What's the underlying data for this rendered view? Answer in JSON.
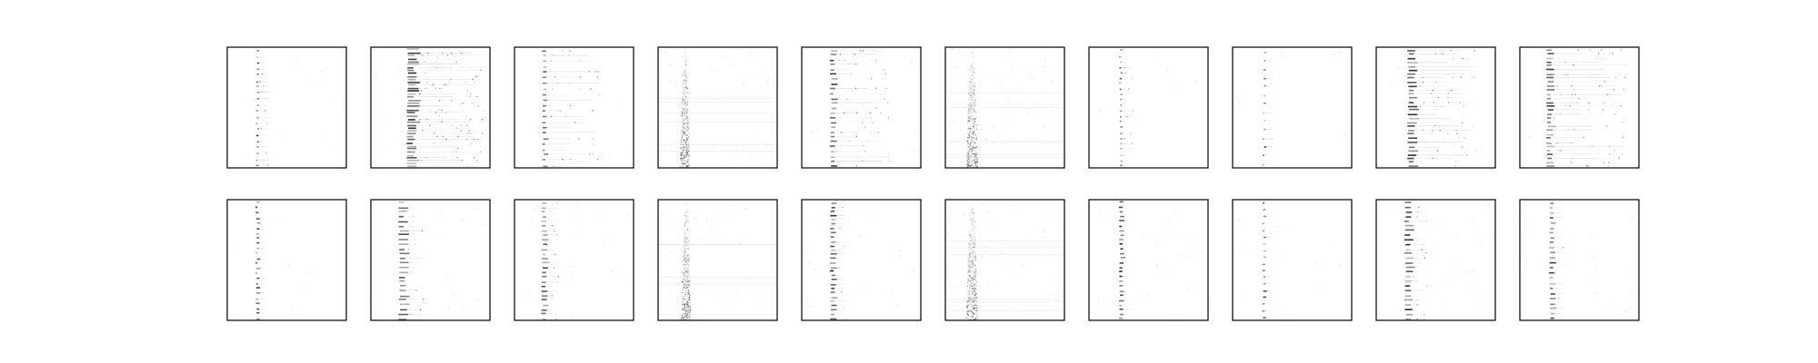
{
  "chart_data": {
    "type": "heatmap",
    "title": "",
    "grid": false,
    "axes_ticks": false,
    "colormap": "gray_r",
    "layout": {
      "rows": 2,
      "cols": 10
    },
    "panels": [
      {
        "row": 0,
        "col": 0,
        "band_x": 0.25,
        "band_width": 0.02,
        "lines": 20,
        "spread": 0.1,
        "intensity": 0.7,
        "noise": 0.02
      },
      {
        "row": 0,
        "col": 1,
        "band_x": 0.35,
        "band_width": 0.1,
        "lines": 40,
        "spread": 0.55,
        "intensity": 0.8,
        "noise": 0.03
      },
      {
        "row": 0,
        "col": 2,
        "band_x": 0.25,
        "band_width": 0.04,
        "lines": 22,
        "spread": 0.45,
        "intensity": 0.6,
        "noise": 0.02
      },
      {
        "row": 0,
        "col": 3,
        "band_x": 0.22,
        "band_width": 0.05,
        "lines": 0,
        "spread": 0.0,
        "intensity": 0.8,
        "noise": 0.08,
        "diffuse": true
      },
      {
        "row": 0,
        "col": 4,
        "band_x": 0.26,
        "band_width": 0.05,
        "lines": 25,
        "spread": 0.45,
        "intensity": 0.7,
        "noise": 0.02
      },
      {
        "row": 0,
        "col": 5,
        "band_x": 0.22,
        "band_width": 0.06,
        "lines": 0,
        "spread": 0.0,
        "intensity": 0.9,
        "noise": 0.1,
        "diffuse": true
      },
      {
        "row": 0,
        "col": 6,
        "band_x": 0.26,
        "band_width": 0.02,
        "lines": 22,
        "spread": 0.1,
        "intensity": 0.6,
        "noise": 0.01
      },
      {
        "row": 0,
        "col": 7,
        "band_x": 0.26,
        "band_width": 0.02,
        "lines": 14,
        "spread": 0.08,
        "intensity": 0.6,
        "noise": 0.01
      },
      {
        "row": 0,
        "col": 8,
        "band_x": 0.3,
        "band_width": 0.08,
        "lines": 30,
        "spread": 0.5,
        "intensity": 0.8,
        "noise": 0.02
      },
      {
        "row": 0,
        "col": 9,
        "band_x": 0.25,
        "band_width": 0.06,
        "lines": 30,
        "spread": 0.6,
        "intensity": 0.7,
        "noise": 0.02
      },
      {
        "row": 1,
        "col": 0,
        "band_x": 0.25,
        "band_width": 0.03,
        "lines": 24,
        "spread": 0.06,
        "intensity": 0.7,
        "noise": 0.02
      },
      {
        "row": 1,
        "col": 1,
        "band_x": 0.27,
        "band_width": 0.08,
        "lines": 26,
        "spread": 0.15,
        "intensity": 0.6,
        "noise": 0.04
      },
      {
        "row": 1,
        "col": 2,
        "band_x": 0.25,
        "band_width": 0.05,
        "lines": 26,
        "spread": 0.1,
        "intensity": 0.7,
        "noise": 0.03
      },
      {
        "row": 1,
        "col": 3,
        "band_x": 0.23,
        "band_width": 0.05,
        "lines": 0,
        "spread": 0.0,
        "intensity": 0.8,
        "noise": 0.06,
        "diffuse": true
      },
      {
        "row": 1,
        "col": 4,
        "band_x": 0.26,
        "band_width": 0.05,
        "lines": 28,
        "spread": 0.08,
        "intensity": 0.8,
        "noise": 0.03
      },
      {
        "row": 1,
        "col": 5,
        "band_x": 0.22,
        "band_width": 0.06,
        "lines": 0,
        "spread": 0.0,
        "intensity": 0.9,
        "noise": 0.08,
        "diffuse": true
      },
      {
        "row": 1,
        "col": 6,
        "band_x": 0.27,
        "band_width": 0.04,
        "lines": 26,
        "spread": 0.06,
        "intensity": 0.8,
        "noise": 0.03
      },
      {
        "row": 1,
        "col": 7,
        "band_x": 0.26,
        "band_width": 0.03,
        "lines": 18,
        "spread": 0.05,
        "intensity": 0.6,
        "noise": 0.02
      },
      {
        "row": 1,
        "col": 8,
        "band_x": 0.27,
        "band_width": 0.07,
        "lines": 26,
        "spread": 0.12,
        "intensity": 0.8,
        "noise": 0.04
      },
      {
        "row": 1,
        "col": 9,
        "band_x": 0.27,
        "band_width": 0.05,
        "lines": 24,
        "spread": 0.08,
        "intensity": 0.7,
        "noise": 0.03
      }
    ]
  }
}
